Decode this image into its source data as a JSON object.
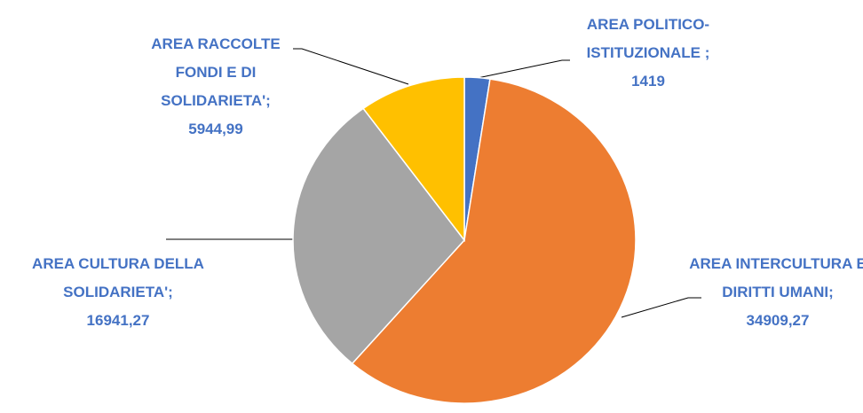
{
  "chart_data": {
    "type": "pie",
    "categories": [
      "AREA POLITICO-ISTITUZIONALE ;",
      "AREA INTERCULTURA E DIRITTI UMANI;",
      "AREA CULTURA DELLA SOLIDARIETA';",
      "AREA RACCOLTE FONDI E DI SOLIDARIETA';"
    ],
    "values": [
      1419,
      34909.27,
      16941.27,
      5944.99
    ],
    "value_labels": [
      "1419",
      "34909,27",
      "16941,27",
      "5944,99"
    ],
    "colors": [
      "#4472c4",
      "#ed7d31",
      "#a5a5a5",
      "#ffc000"
    ],
    "label_color": "#4472c4"
  }
}
